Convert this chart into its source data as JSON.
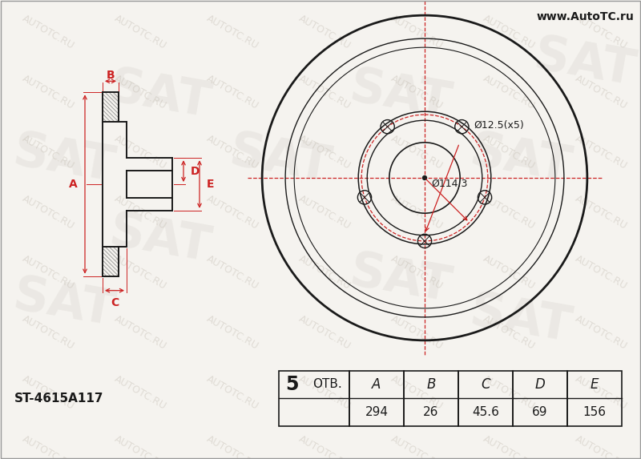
{
  "bg_color": "#f5f3ef",
  "line_color": "#1a1a1a",
  "red_color": "#cc2222",
  "part_number": "ST-4615A117",
  "otv_label": "ОТВ.",
  "table_headers": [
    "A",
    "B",
    "C",
    "D",
    "E"
  ],
  "table_values": [
    "294",
    "26",
    "45.6",
    "69",
    "156"
  ],
  "bolt_hole_label": "Ø12.5(x5)",
  "pcd_label": "Ø114.3",
  "website": "www.AutoTC.ru",
  "dim_A": "A",
  "dim_B": "B",
  "dim_C": "C",
  "dim_D": "D",
  "dim_E": "E",
  "n_bolts": 5
}
